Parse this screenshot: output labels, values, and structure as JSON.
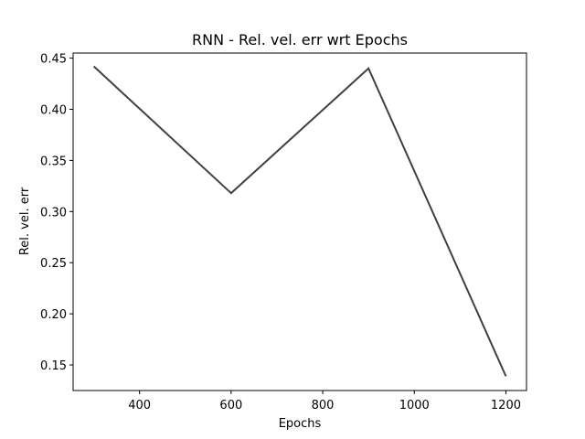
{
  "chart_data": {
    "type": "line",
    "title": "RNN - Rel. vel. err wrt Epochs",
    "xlabel": "Epochs",
    "ylabel": "Rel. vel. err",
    "xlim": [
      255,
      1245
    ],
    "ylim": [
      0.125,
      0.455
    ],
    "x_ticks": [
      400,
      600,
      800,
      1000,
      1200
    ],
    "y_ticks": [
      0.15,
      0.2,
      0.25,
      0.3,
      0.35,
      0.4,
      0.45
    ],
    "x_tick_labels": [
      "400",
      "600",
      "800",
      "1000",
      "1200"
    ],
    "y_tick_labels": [
      "0.15",
      "0.20",
      "0.25",
      "0.30",
      "0.35",
      "0.40",
      "0.45"
    ],
    "grid": false,
    "series": [
      {
        "x": [
          300,
          600,
          900,
          1200
        ],
        "values": [
          0.442,
          0.318,
          0.44,
          0.139
        ],
        "color": "#404040"
      }
    ]
  }
}
